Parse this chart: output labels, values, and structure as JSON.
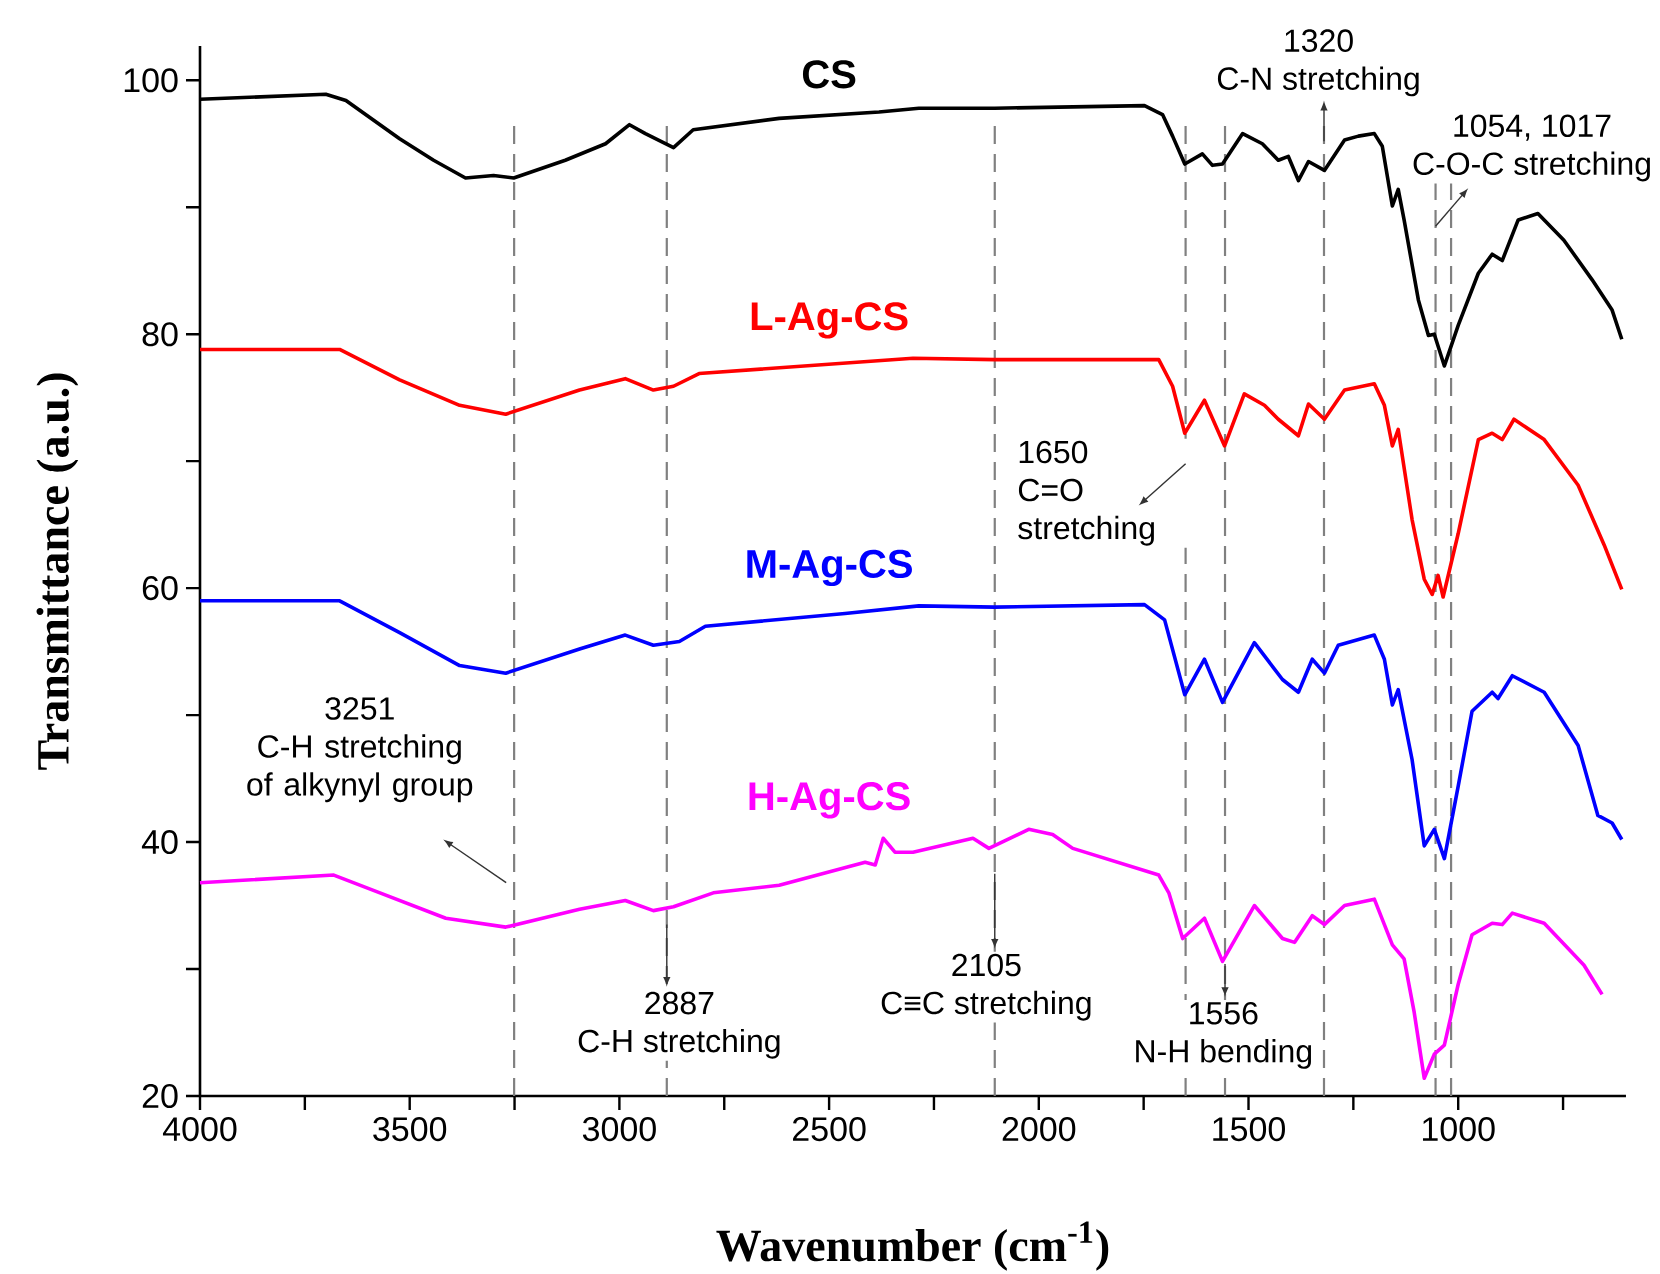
{
  "chart_data": {
    "type": "line",
    "xlabel": "Wavenumber (cm$^{-1}$)",
    "ylabel": "Transmittance (a.u.)",
    "xlim": [
      4000,
      600
    ],
    "ylim": [
      20,
      102.7
    ],
    "xticks": [
      4000,
      {
        "value": 3750,
        "label": null
      },
      3500,
      {
        "value": 3250,
        "label": null
      },
      3000,
      {
        "value": 2750,
        "label": null
      },
      2500,
      {
        "value": 2250,
        "label": null
      },
      2000,
      {
        "value": 1750,
        "label": null
      },
      1500,
      {
        "value": 1250,
        "label": null
      },
      1000,
      {
        "value": 750,
        "label": null
      }
    ],
    "yticks": [
      20,
      {
        "value": 30,
        "label": null
      },
      40,
      {
        "value": 50,
        "label": null
      },
      60,
      {
        "value": 70,
        "label": null
      },
      80,
      {
        "value": 90,
        "label": null
      },
      100
    ],
    "series": [
      {
        "name": "CS",
        "color": "#000000",
        "x": [
          4000,
          3700,
          3652,
          3524,
          3443,
          3367,
          3300,
          3252,
          3129,
          3033,
          2976,
          2938,
          2871,
          2824,
          2619,
          2381,
          2286,
          2105,
          1748,
          1705,
          1681,
          1652,
          1610,
          1586,
          1562,
          1514,
          1467,
          1429,
          1405,
          1381,
          1357,
          1319,
          1271,
          1238,
          1200,
          1181,
          1157,
          1143,
          1129,
          1095,
          1071,
          1057,
          1033,
          1000,
          952,
          919,
          895,
          857,
          810,
          748,
          681,
          633,
          610
        ],
        "values": [
          98.5,
          98.9,
          98.4,
          95.4,
          93.7,
          92.3,
          92.5,
          92.3,
          93.7,
          95.0,
          96.5,
          95.8,
          94.7,
          96.1,
          97.0,
          97.5,
          97.8,
          97.8,
          98.0,
          97.3,
          95.6,
          93.4,
          94.2,
          93.3,
          93.4,
          95.8,
          95.0,
          93.7,
          94.0,
          92.1,
          93.6,
          92.9,
          95.3,
          95.6,
          95.8,
          94.8,
          90.1,
          91.4,
          89.0,
          82.7,
          79.9,
          80.0,
          77.5,
          80.7,
          84.8,
          86.3,
          85.8,
          89.0,
          89.5,
          87.4,
          84.3,
          81.9,
          79.6
        ]
      },
      {
        "name": "L-Ag-CS",
        "color": "#ff0000",
        "x": [
          4000,
          3667,
          3524,
          3381,
          3271,
          3095,
          2986,
          2919,
          2871,
          2810,
          2300,
          2105,
          1714,
          1681,
          1652,
          1605,
          1557,
          1510,
          1462,
          1429,
          1381,
          1357,
          1319,
          1271,
          1200,
          1176,
          1157,
          1143,
          1110,
          1081,
          1062,
          1048,
          1036,
          1000,
          952,
          919,
          895,
          867,
          795,
          714,
          652,
          610
        ],
        "values": [
          78.8,
          78.8,
          76.4,
          74.4,
          73.7,
          75.6,
          76.5,
          75.6,
          75.9,
          76.9,
          78.1,
          78.0,
          78.0,
          75.9,
          72.2,
          74.8,
          71.2,
          75.3,
          74.4,
          73.3,
          72.0,
          74.5,
          73.3,
          75.6,
          76.1,
          74.4,
          71.2,
          72.5,
          65.4,
          60.7,
          59.5,
          61.0,
          59.3,
          64.3,
          71.7,
          72.2,
          71.7,
          73.3,
          71.7,
          68.1,
          63.4,
          59.9
        ]
      },
      {
        "name": "M-Ag-CS",
        "color": "#0000ff",
        "x": [
          4000,
          3667,
          3524,
          3381,
          3271,
          3095,
          2986,
          2919,
          2857,
          2795,
          2462,
          2286,
          2105,
          1748,
          1700,
          1652,
          1605,
          1562,
          1486,
          1419,
          1381,
          1348,
          1319,
          1286,
          1200,
          1176,
          1157,
          1143,
          1110,
          1081,
          1057,
          1033,
          1000,
          967,
          919,
          905,
          871,
          795,
          714,
          667,
          633,
          610
        ],
        "values": [
          59.0,
          59.0,
          56.5,
          53.9,
          53.3,
          55.2,
          56.3,
          55.5,
          55.8,
          57.0,
          58.0,
          58.6,
          58.5,
          58.7,
          57.5,
          51.6,
          54.4,
          51.0,
          55.7,
          52.8,
          51.8,
          54.4,
          53.3,
          55.5,
          56.3,
          54.4,
          50.8,
          52.0,
          46.5,
          39.7,
          41.0,
          38.7,
          44.4,
          50.3,
          51.8,
          51.3,
          53.1,
          51.8,
          47.6,
          42.1,
          41.5,
          40.2
        ]
      },
      {
        "name": "H-Ag-CS",
        "color": "#ff00ff",
        "x": [
          4000,
          3681,
          3571,
          3414,
          3271,
          3095,
          2986,
          2919,
          2871,
          2776,
          2619,
          2414,
          2390,
          2371,
          2343,
          2300,
          2157,
          2119,
          2024,
          1967,
          1919,
          1714,
          1690,
          1657,
          1605,
          1562,
          1486,
          1419,
          1390,
          1348,
          1319,
          1271,
          1200,
          1176,
          1157,
          1129,
          1105,
          1081,
          1057,
          1033,
          1000,
          967,
          919,
          895,
          871,
          795,
          700,
          657
        ],
        "values": [
          36.8,
          37.4,
          36.0,
          34.0,
          33.3,
          34.7,
          35.4,
          34.6,
          34.9,
          36.0,
          36.6,
          38.4,
          38.2,
          40.3,
          39.2,
          39.2,
          40.3,
          39.5,
          41.0,
          40.6,
          39.5,
          37.4,
          36.0,
          32.4,
          34.0,
          30.6,
          35.0,
          32.4,
          32.1,
          34.2,
          33.5,
          35.0,
          35.5,
          33.5,
          31.9,
          30.8,
          26.6,
          21.4,
          23.3,
          24.0,
          28.8,
          32.7,
          33.6,
          33.5,
          34.4,
          33.6,
          30.3,
          28.0
        ]
      }
    ],
    "ref_lines": [
      {
        "axis": "x",
        "value": 3251,
        "line_style": "dashed",
        "color": "#808080"
      },
      {
        "axis": "x",
        "value": 2887,
        "line_style": "dashed",
        "color": "#808080"
      },
      {
        "axis": "x",
        "value": 2105,
        "line_style": "dashed",
        "color": "#808080"
      },
      {
        "axis": "x",
        "value": 1650,
        "line_style": "dashed",
        "color": "#808080"
      },
      {
        "axis": "x",
        "value": 1556,
        "line_style": "dashed",
        "color": "#808080"
      },
      {
        "axis": "x",
        "value": 1320,
        "line_style": "dashed",
        "color": "#808080"
      },
      {
        "axis": "x",
        "value": 1054,
        "line_style": "dashed",
        "color": "#808080"
      },
      {
        "axis": "x",
        "value": 1017,
        "line_style": "dashed",
        "color": "#808080"
      }
    ],
    "annotations": [
      "3251",
      "C-H stretching of alkynyl group",
      "2887",
      "C-H stretching",
      "2105",
      "C≡C stretching",
      "1650",
      "C=O stretching",
      "1556",
      "N-H bending",
      "1320",
      "C-N stretching",
      "1054, 1017",
      "C-O-C stretching"
    ]
  }
}
